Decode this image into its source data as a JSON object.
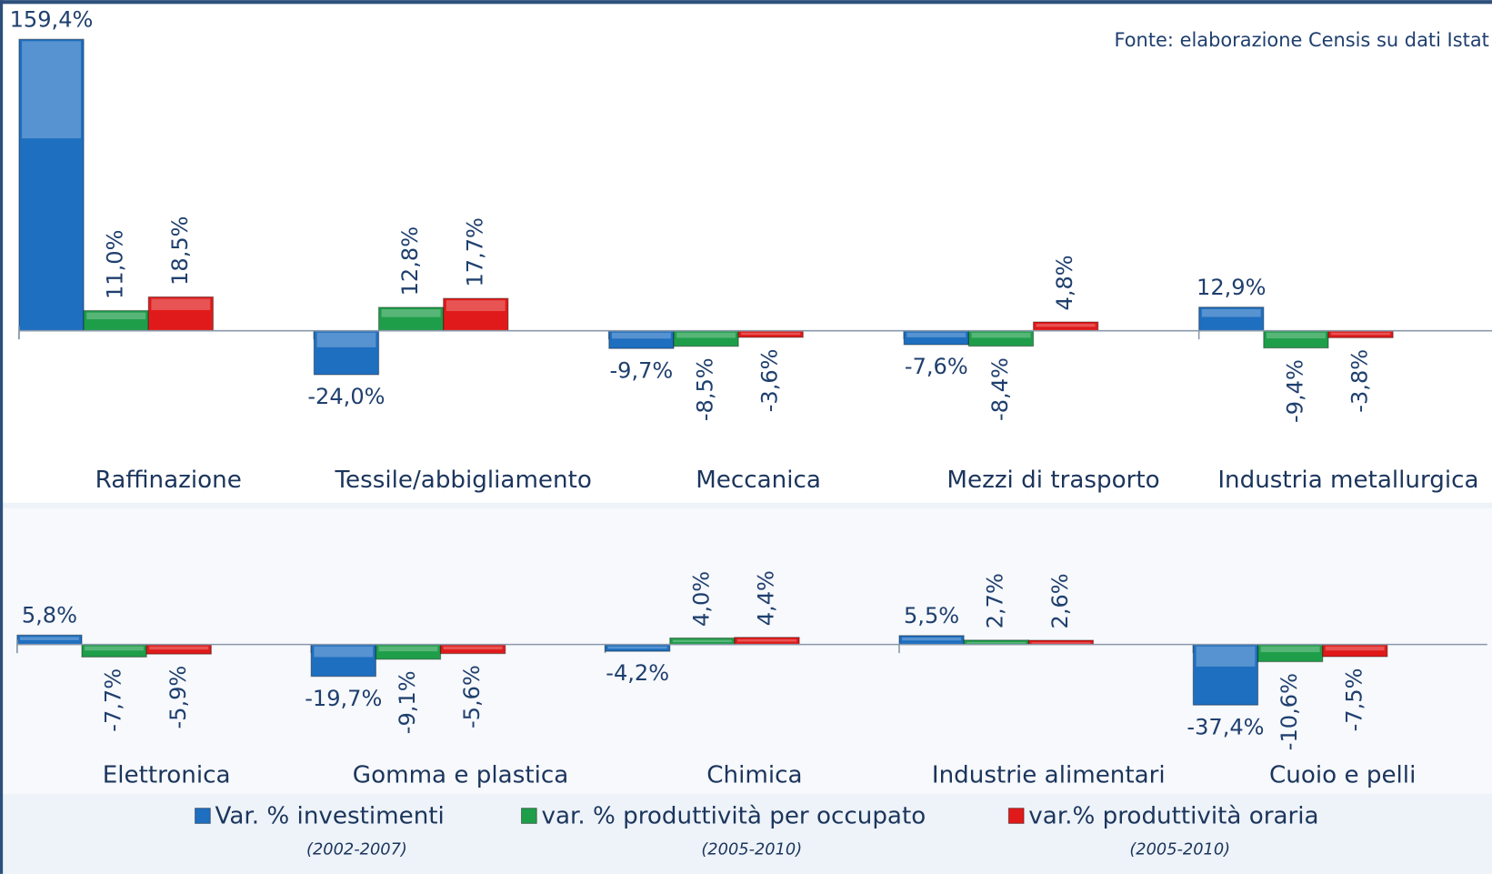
{
  "chart_data": [
    {
      "type": "bar",
      "source": "Fonte: elaborazione Censis su dati Istat",
      "categories": [
        "Raffinazione",
        "Tessile/abbigliamento",
        "Meccanica",
        "Mezzi di trasporto",
        "Industria metallurgica"
      ],
      "ylim": [
        -30,
        160
      ],
      "series": [
        {
          "name": "Var. % investimenti",
          "note": "(2002-2007)",
          "color": "#1f6fc0",
          "values": [
            159.4,
            -24.0,
            -9.7,
            -7.6,
            12.9
          ],
          "value_labels": [
            "159,4%",
            "-24,0%",
            "-9,7%",
            "-7,6%",
            "12,9%"
          ]
        },
        {
          "name": "var. % produttività per occupato",
          "note": "(2005-2010)",
          "color": "#1f9e4a",
          "values": [
            11.0,
            12.8,
            -8.5,
            -8.4,
            -9.4
          ],
          "value_labels": [
            "11,0%",
            "12,8%",
            "-8,5%",
            "-8,4%",
            "-9,4%"
          ]
        },
        {
          "name": "var.% produttività oraria",
          "note": "(2005-2010)",
          "color": "#e01a1a",
          "values": [
            18.5,
            17.7,
            -3.6,
            4.8,
            -3.8
          ],
          "value_labels": [
            "18,5%",
            "17,7%",
            "-3,6%",
            "4,8%",
            "-3,8%"
          ]
        }
      ]
    },
    {
      "type": "bar",
      "categories": [
        "Elettronica",
        "Gomma e plastica",
        "Chimica",
        "Industrie alimentari",
        "Cuoio e pelli"
      ],
      "ylim": [
        -40,
        10
      ],
      "series": [
        {
          "color": "#1f6fc0",
          "values": [
            5.8,
            -19.7,
            -4.2,
            5.5,
            -37.4
          ],
          "value_labels": [
            "5,8%",
            "-19,7%",
            "-4,2%",
            "5,5%",
            "-37,4%"
          ]
        },
        {
          "color": "#1f9e4a",
          "values": [
            -7.7,
            -9.1,
            4.0,
            2.7,
            -10.6
          ],
          "value_labels": [
            "-7,7%",
            "-9,1%",
            "4,0%",
            "2,7%",
            "-10,6%"
          ]
        },
        {
          "color": "#e01a1a",
          "values": [
            -5.9,
            -5.6,
            4.4,
            2.6,
            -7.5
          ],
          "value_labels": [
            "-5,9%",
            "-5,6%",
            "4,4%",
            "2,6%",
            "-7,5%"
          ]
        }
      ]
    }
  ]
}
